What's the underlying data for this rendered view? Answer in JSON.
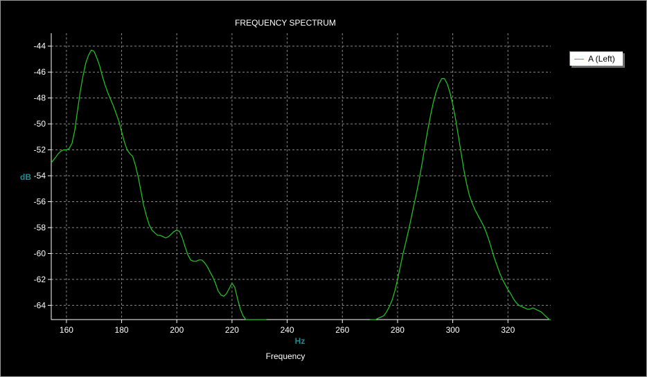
{
  "chart_data": {
    "type": "line",
    "title": "FREQUENCY SPECTRUM",
    "xlabel_unit": "Hz",
    "xlabel": "Frequency",
    "ylabel": "dB",
    "xlim": [
      154.5,
      335.5
    ],
    "ylim": [
      -65.1,
      -43.0
    ],
    "x_ticks": [
      160,
      180,
      200,
      220,
      240,
      260,
      280,
      300,
      320
    ],
    "y_ticks": [
      -44,
      -46,
      -48,
      -50,
      -52,
      -54,
      -56,
      -58,
      -60,
      -62,
      -64
    ],
    "grid": true,
    "legend_position": "right",
    "colors": {
      "background": "#000000",
      "grid": "#8a8a8a",
      "axis_label": "#1f8f8f",
      "text": "#ffffff",
      "series": "#22cc22"
    },
    "series": [
      {
        "name": "A (Left)",
        "x": [
          154.5,
          156,
          157,
          158,
          159,
          160,
          161,
          162,
          163,
          164,
          165,
          166,
          167,
          168,
          169,
          170,
          171,
          172,
          173,
          174,
          175,
          176,
          177,
          178,
          179,
          180,
          181,
          182,
          183,
          184,
          185,
          186,
          187,
          188,
          189,
          190,
          191,
          192,
          193,
          194,
          195,
          196,
          197,
          198,
          199,
          200,
          201,
          202,
          203,
          204,
          205,
          206,
          207,
          208,
          209,
          210,
          211,
          212,
          213,
          214,
          215,
          216,
          217,
          218,
          219,
          220,
          221,
          222,
          223,
          224,
          225,
          226,
          227,
          228,
          229,
          230,
          231,
          232,
          232.5
        ],
        "y": [
          -53.0,
          -52.6,
          -52.3,
          -52.1,
          -52.0,
          -52.0,
          -51.9,
          -51.5,
          -50.5,
          -49.0,
          -47.5,
          -46.3,
          -45.3,
          -44.7,
          -44.3,
          -44.4,
          -44.9,
          -45.5,
          -46.3,
          -47.0,
          -47.6,
          -48.1,
          -48.6,
          -49.2,
          -49.8,
          -50.6,
          -51.4,
          -52.0,
          -52.3,
          -52.5,
          -53.2,
          -54.1,
          -55.2,
          -56.3,
          -57.1,
          -57.8,
          -58.2,
          -58.4,
          -58.6,
          -58.6,
          -58.7,
          -58.8,
          -58.7,
          -58.5,
          -58.3,
          -58.2,
          -58.3,
          -58.8,
          -59.5,
          -60.1,
          -60.5,
          -60.6,
          -60.6,
          -60.5,
          -60.5,
          -60.7,
          -61.0,
          -61.4,
          -61.8,
          -62.3,
          -62.9,
          -63.2,
          -63.3,
          -63.1,
          -62.7,
          -62.3,
          -62.6,
          -63.5,
          -64.3,
          -64.8,
          -65.1,
          -65.1,
          -65.1,
          -65.1,
          -65.1,
          -65.1,
          -65.1,
          -65.1,
          -65.1
        ]
      },
      {
        "name": "A (Left)",
        "x": [
          270,
          271,
          272,
          273,
          274,
          275,
          276,
          277,
          278,
          279,
          280,
          281,
          282,
          283,
          284,
          285,
          286,
          287,
          288,
          289,
          290,
          291,
          292,
          293,
          294,
          295,
          296,
          297,
          298,
          299,
          300,
          301,
          302,
          303,
          304,
          305,
          306,
          307,
          308,
          309,
          310,
          311,
          312,
          313,
          314,
          315,
          316,
          317,
          318,
          319,
          320,
          321,
          322,
          323,
          324,
          325,
          326,
          327,
          328,
          329,
          330,
          331,
          332,
          333,
          334,
          335,
          335.5
        ],
        "y": [
          -65.1,
          -65.1,
          -65.1,
          -65.0,
          -64.9,
          -64.8,
          -64.5,
          -64.1,
          -63.6,
          -62.9,
          -62.0,
          -61.0,
          -60.0,
          -59.1,
          -58.2,
          -57.2,
          -56.2,
          -55.2,
          -54.1,
          -52.9,
          -51.6,
          -50.4,
          -49.3,
          -48.3,
          -47.5,
          -46.9,
          -46.5,
          -46.5,
          -46.9,
          -47.6,
          -48.5,
          -49.6,
          -50.9,
          -52.2,
          -53.5,
          -54.6,
          -55.5,
          -56.1,
          -56.6,
          -57.0,
          -57.4,
          -57.8,
          -58.3,
          -58.9,
          -59.6,
          -60.3,
          -60.9,
          -61.5,
          -62.0,
          -62.4,
          -62.8,
          -63.1,
          -63.5,
          -63.8,
          -64.0,
          -64.1,
          -64.2,
          -64.3,
          -64.3,
          -64.2,
          -64.3,
          -64.4,
          -64.5,
          -64.7,
          -64.9,
          -65.1,
          -65.1
        ]
      }
    ]
  }
}
